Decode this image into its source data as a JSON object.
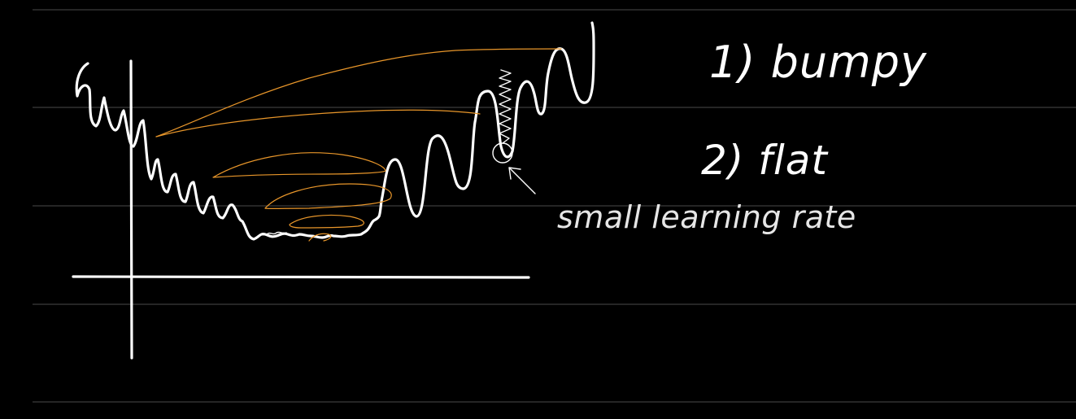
{
  "canvas": {
    "background": "#000000",
    "rule_color": "#4a4a4a",
    "ink_color": "#ffffff",
    "path_color": "#e8962a"
  },
  "notes": {
    "item_1": "1) bumpy",
    "item_2": "2) flat",
    "annotation": "small learning rate"
  }
}
